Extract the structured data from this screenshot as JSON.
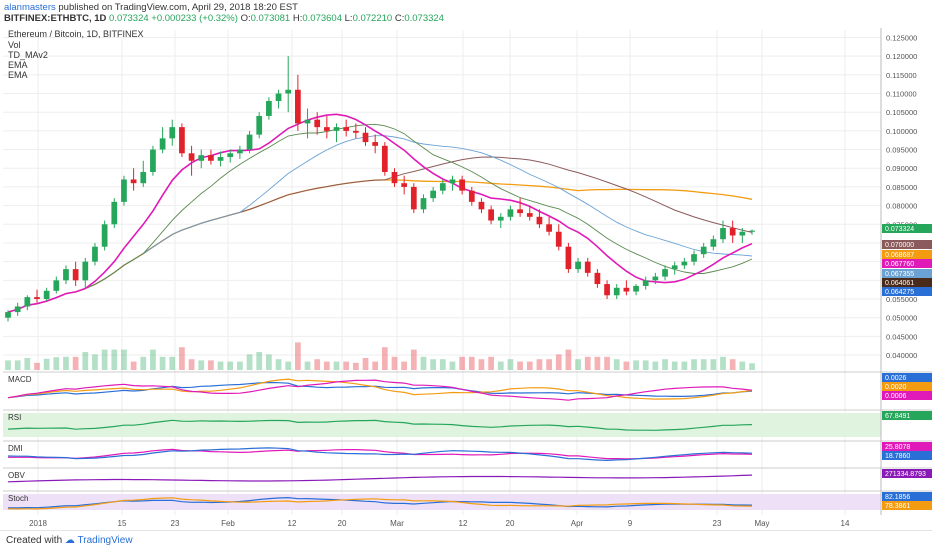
{
  "header": {
    "author": "alanmasters",
    "published": "published on TradingView.com, April 29, 2018 18:20 EST",
    "symbol": "BITFINEX:ETHBTC, 1D",
    "last": "0.073324",
    "change": "+0.000233 (+0.32%)",
    "o_label": "O:",
    "o": "0.073081",
    "h_label": "H:",
    "h": "0.073604",
    "l_label": "L:",
    "l": "0.072210",
    "c_label": "C:",
    "c": "0.073324"
  },
  "legend": {
    "title": "Ethereum / Bitcoin, 1D, BITFINEX",
    "items": [
      "Vol",
      "TD_MAv2",
      "EMA",
      "EMA"
    ]
  },
  "colors": {
    "up": "#26a65b",
    "down": "#e2222b",
    "ema_fast": "#e01ab8",
    "ema_slow": "#f39c12",
    "sma_green": "#5a8a4f",
    "sma_blue": "#6ba2d4",
    "sma_brown": "#8b5a5a",
    "grid": "#eeeeee"
  },
  "x_axis": {
    "ticks": [
      "2018",
      "15",
      "23",
      "Feb",
      "12",
      "20",
      "Mar",
      "12",
      "20",
      "Apr",
      "9",
      "23",
      "May",
      "14"
    ]
  },
  "chart_data": [
    {
      "type": "candlestick",
      "title": "Ethereum / Bitcoin, 1D, BITFINEX",
      "y_ticks": [
        "0.125000",
        "0.120000",
        "0.115000",
        "0.110000",
        "0.105000",
        "0.100000",
        "0.095000",
        "0.090000",
        "0.085000",
        "0.080000",
        "0.075000",
        "0.070000",
        "0.065000",
        "0.060000",
        "0.055000",
        "0.050000",
        "0.045000",
        "0.040000"
      ],
      "ylim": [
        0.036,
        0.127
      ],
      "price_labels": [
        {
          "text": "0.073324",
          "color": "#26a65b"
        },
        {
          "text": "0.070000",
          "color": "#8b5a5a"
        },
        {
          "text": "0.068687",
          "color": "#f39c12"
        },
        {
          "text": "0.067760",
          "color": "#e01ab8"
        },
        {
          "text": "0.067355",
          "color": "#6ba2d4"
        },
        {
          "text": "0.064061",
          "color": "#4a2a1a"
        },
        {
          "text": "0.064275",
          "color": "#2a6fd6"
        }
      ],
      "candles": [
        [
          0.05,
          0.052,
          0.049,
          0.0515
        ],
        [
          0.0515,
          0.054,
          0.0505,
          0.053
        ],
        [
          0.053,
          0.056,
          0.052,
          0.0555
        ],
        [
          0.0555,
          0.0575,
          0.054,
          0.055
        ],
        [
          0.055,
          0.058,
          0.0545,
          0.0572
        ],
        [
          0.0572,
          0.061,
          0.0565,
          0.06
        ],
        [
          0.06,
          0.064,
          0.059,
          0.063
        ],
        [
          0.063,
          0.065,
          0.0585,
          0.06
        ],
        [
          0.06,
          0.066,
          0.058,
          0.065
        ],
        [
          0.065,
          0.07,
          0.064,
          0.069
        ],
        [
          0.069,
          0.076,
          0.068,
          0.075
        ],
        [
          0.075,
          0.082,
          0.074,
          0.081
        ],
        [
          0.081,
          0.088,
          0.08,
          0.087
        ],
        [
          0.087,
          0.09,
          0.084,
          0.086
        ],
        [
          0.086,
          0.092,
          0.085,
          0.089
        ],
        [
          0.089,
          0.096,
          0.088,
          0.095
        ],
        [
          0.095,
          0.101,
          0.094,
          0.098
        ],
        [
          0.098,
          0.103,
          0.096,
          0.101
        ],
        [
          0.101,
          0.102,
          0.093,
          0.094
        ],
        [
          0.094,
          0.096,
          0.088,
          0.092
        ],
        [
          0.092,
          0.095,
          0.09,
          0.0935
        ],
        [
          0.0935,
          0.095,
          0.091,
          0.092
        ],
        [
          0.092,
          0.0945,
          0.0905,
          0.093
        ],
        [
          0.093,
          0.095,
          0.0915,
          0.094
        ],
        [
          0.094,
          0.096,
          0.0925,
          0.095
        ],
        [
          0.095,
          0.1,
          0.094,
          0.099
        ],
        [
          0.099,
          0.105,
          0.098,
          0.104
        ],
        [
          0.104,
          0.109,
          0.103,
          0.108
        ],
        [
          0.108,
          0.111,
          0.106,
          0.11
        ],
        [
          0.11,
          0.12,
          0.105,
          0.111
        ],
        [
          0.111,
          0.115,
          0.1,
          0.102
        ],
        [
          0.102,
          0.106,
          0.098,
          0.103
        ],
        [
          0.103,
          0.105,
          0.099,
          0.101
        ],
        [
          0.101,
          0.104,
          0.098,
          0.1
        ],
        [
          0.1,
          0.102,
          0.097,
          0.101
        ],
        [
          0.101,
          0.103,
          0.0985,
          0.1
        ],
        [
          0.1,
          0.102,
          0.098,
          0.0995
        ],
        [
          0.0995,
          0.101,
          0.096,
          0.097
        ],
        [
          0.097,
          0.099,
          0.094,
          0.096
        ],
        [
          0.096,
          0.097,
          0.088,
          0.089
        ],
        [
          0.089,
          0.09,
          0.085,
          0.086
        ],
        [
          0.086,
          0.088,
          0.083,
          0.085
        ],
        [
          0.085,
          0.086,
          0.078,
          0.079
        ],
        [
          0.079,
          0.083,
          0.078,
          0.082
        ],
        [
          0.082,
          0.085,
          0.081,
          0.084
        ],
        [
          0.084,
          0.087,
          0.083,
          0.086
        ],
        [
          0.086,
          0.088,
          0.084,
          0.087
        ],
        [
          0.087,
          0.088,
          0.083,
          0.084
        ],
        [
          0.084,
          0.085,
          0.08,
          0.081
        ],
        [
          0.081,
          0.082,
          0.078,
          0.079
        ],
        [
          0.079,
          0.08,
          0.075,
          0.076
        ],
        [
          0.076,
          0.078,
          0.074,
          0.077
        ],
        [
          0.077,
          0.08,
          0.076,
          0.079
        ],
        [
          0.079,
          0.082,
          0.077,
          0.078
        ],
        [
          0.078,
          0.08,
          0.076,
          0.077
        ],
        [
          0.077,
          0.079,
          0.074,
          0.075
        ],
        [
          0.075,
          0.077,
          0.072,
          0.073
        ],
        [
          0.073,
          0.075,
          0.068,
          0.069
        ],
        [
          0.069,
          0.07,
          0.062,
          0.063
        ],
        [
          0.063,
          0.066,
          0.062,
          0.065
        ],
        [
          0.065,
          0.066,
          0.061,
          0.062
        ],
        [
          0.062,
          0.063,
          0.058,
          0.059
        ],
        [
          0.059,
          0.06,
          0.055,
          0.056
        ],
        [
          0.056,
          0.059,
          0.055,
          0.058
        ],
        [
          0.058,
          0.06,
          0.056,
          0.057
        ],
        [
          0.057,
          0.059,
          0.056,
          0.0585
        ],
        [
          0.0585,
          0.061,
          0.0575,
          0.06
        ],
        [
          0.06,
          0.062,
          0.059,
          0.061
        ],
        [
          0.061,
          0.064,
          0.06,
          0.063
        ],
        [
          0.063,
          0.065,
          0.0615,
          0.064
        ],
        [
          0.064,
          0.066,
          0.063,
          0.065
        ],
        [
          0.065,
          0.068,
          0.064,
          0.067
        ],
        [
          0.067,
          0.07,
          0.066,
          0.069
        ],
        [
          0.069,
          0.072,
          0.068,
          0.071
        ],
        [
          0.071,
          0.076,
          0.07,
          0.074
        ],
        [
          0.074,
          0.076,
          0.07,
          0.072
        ],
        [
          0.072,
          0.074,
          0.07,
          0.073
        ],
        [
          0.073,
          0.0736,
          0.0722,
          0.0733
        ]
      ]
    },
    {
      "type": "line",
      "title": "MACD",
      "value_labels": [
        "0.0026",
        "0.0020",
        "0.0006"
      ]
    },
    {
      "type": "line",
      "title": "RSI",
      "value_labels": [
        "67.8491"
      ]
    },
    {
      "type": "line",
      "title": "DMI",
      "value_labels": [
        "25.8078",
        "18.7860"
      ]
    },
    {
      "type": "line",
      "title": "OBV",
      "value_labels": [
        "271334.8793"
      ]
    },
    {
      "type": "line",
      "title": "Stoch",
      "value_labels": [
        "82.1856",
        "78.3861"
      ]
    }
  ],
  "footer": {
    "created": "Created with",
    "brand": "TradingView"
  }
}
